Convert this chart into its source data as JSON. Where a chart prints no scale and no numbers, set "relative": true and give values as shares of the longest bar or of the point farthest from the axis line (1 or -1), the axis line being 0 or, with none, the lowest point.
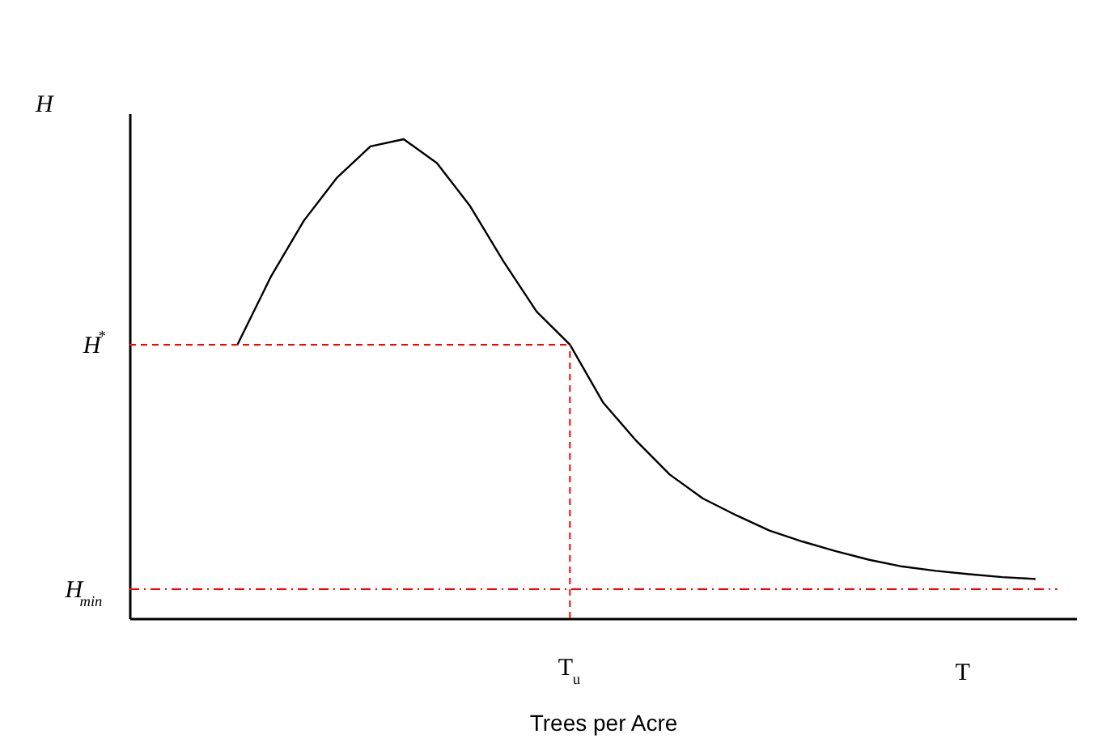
{
  "chart_data": {
    "type": "line",
    "relative": true,
    "xlabel": "Trees per Acre",
    "line_style": "solid",
    "categories": [
      null,
      null,
      null,
      null,
      null,
      null,
      null,
      null,
      null,
      null,
      null,
      null,
      null,
      null,
      null,
      null,
      null,
      null,
      null,
      null,
      null,
      null,
      null,
      null,
      null
    ],
    "series": [
      {
        "color": "#000000",
        "values": [
          0.571,
          0.712,
          0.83,
          0.92,
          0.985,
          1,
          0.95,
          0.86,
          0.745,
          0.64,
          0.571,
          0.45,
          0.37,
          0.3,
          0.25,
          0.215,
          0.183,
          0.16,
          0.14,
          0.122,
          0.108,
          0.099,
          0.092,
          0.086,
          0.082
        ]
      }
    ],
    "ref_lines": [
      {
        "axis": "y",
        "value": 0.571,
        "label": "H$^{*}$",
        "color": "#ff0000",
        "line_style": "dashed"
      },
      {
        "axis": "y",
        "value": 0.061,
        "label": "H$_{min}$",
        "color": "#ff0000",
        "line_style": "dashdot"
      }
    ],
    "annotations": [
      "H",
      "T$_{u}$",
      "T"
    ]
  }
}
